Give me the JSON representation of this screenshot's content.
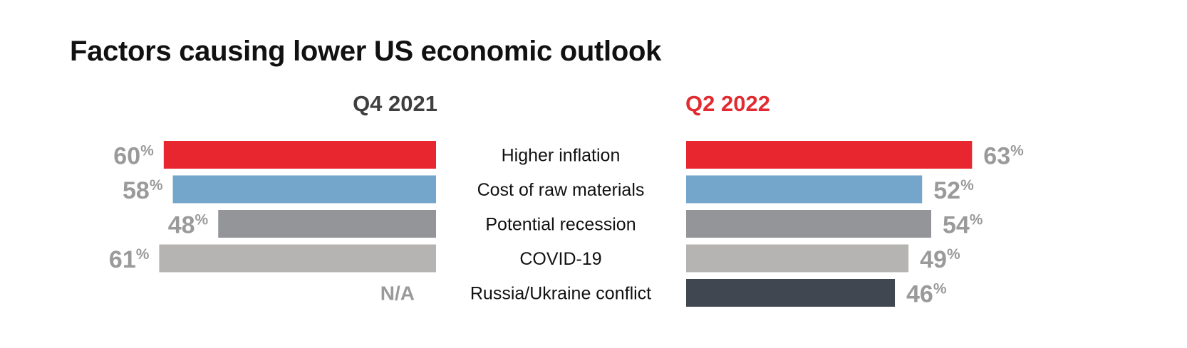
{
  "chart_data": {
    "type": "bar",
    "title": "Factors causing lower US economic outlook",
    "categories": [
      "Higher inflation",
      "Cost of raw materials",
      "Potential recession",
      "COVID-19",
      "Russia/Ukraine conflict"
    ],
    "colors": [
      "#e8262f",
      "#74a6cb",
      "#939598",
      "#b5b4b2",
      "#414751"
    ],
    "series": [
      {
        "name": "Q4 2021",
        "values": [
          60,
          58,
          48,
          61,
          null
        ],
        "color": "#3f3f3f"
      },
      {
        "name": "Q2 2022",
        "values": [
          63,
          52,
          54,
          49,
          46
        ],
        "color": "#e12b31"
      }
    ],
    "value_suffix": "%",
    "missing_label": "N/A"
  }
}
